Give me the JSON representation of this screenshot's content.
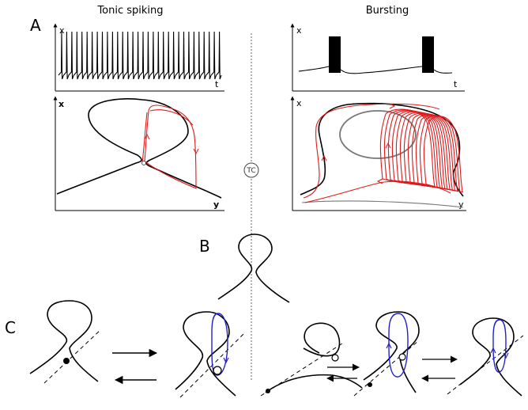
{
  "titles": {
    "left": "Tonic spiking",
    "right": "Bursting"
  },
  "panels": {
    "a": "A",
    "b": "B",
    "c": "C"
  },
  "axes": {
    "x": "x",
    "t": "t",
    "y": "y"
  },
  "divider_label": "TC",
  "colors": {
    "trajectory": "#e01a1a",
    "cycle": "#2222cc",
    "curve": "#000000",
    "divider": "#666666"
  },
  "tonic_spikes": 32,
  "burst_spikes": 2
}
